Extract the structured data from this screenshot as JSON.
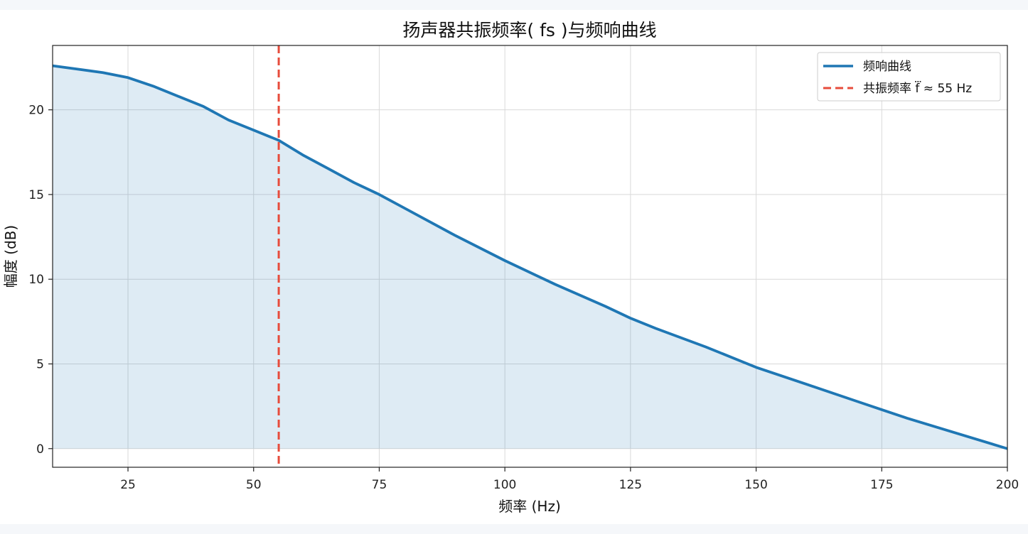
{
  "chart_data": {
    "type": "line",
    "title": "扬声器共振频率( fs )与频响曲线",
    "xlabel": "频率 (Hz)",
    "ylabel": "幅度 (dB)",
    "xlim": [
      10,
      200
    ],
    "ylim": [
      -1.1,
      23.8
    ],
    "xticks": [
      25,
      50,
      75,
      100,
      125,
      150,
      175,
      200
    ],
    "yticks": [
      0,
      5,
      10,
      15,
      20
    ],
    "grid": true,
    "legend_position": "top-right",
    "series": [
      {
        "name": "频响曲线",
        "style": "solid",
        "color": "#1f77b4",
        "fill": true,
        "fill_color": "#1f77b4",
        "x": [
          10,
          15,
          20,
          25,
          30,
          35,
          40,
          45,
          50,
          55,
          60,
          65,
          70,
          75,
          80,
          90,
          100,
          110,
          120,
          125,
          130,
          140,
          150,
          160,
          170,
          175,
          180,
          190,
          200
        ],
        "y": [
          22.6,
          22.4,
          22.2,
          21.9,
          21.4,
          20.8,
          20.2,
          19.4,
          18.8,
          18.2,
          17.3,
          16.5,
          15.7,
          15.0,
          14.2,
          12.6,
          11.1,
          9.7,
          8.4,
          7.7,
          7.1,
          6.0,
          4.8,
          3.8,
          2.8,
          2.3,
          1.8,
          0.9,
          0.0
        ]
      }
    ],
    "vlines": [
      {
        "name": "共振频率 f⃛ ≈ 55 Hz",
        "x": 55,
        "style": "dashed",
        "color": "#e74c3c"
      }
    ]
  }
}
